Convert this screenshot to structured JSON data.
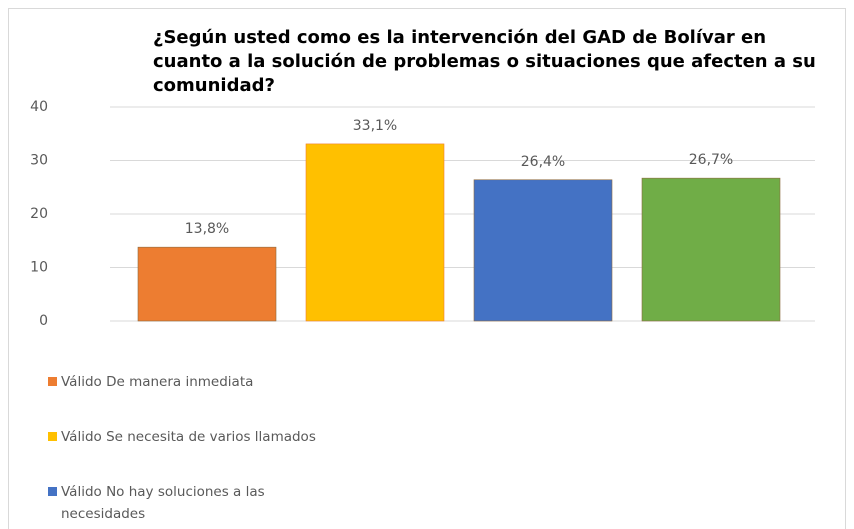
{
  "chart_data": {
    "type": "bar",
    "title": "¿Según usted como es la intervención del GAD de Bolívar en cuanto a la solución de problemas o situaciones que afecten a su comunidad?",
    "series": [
      {
        "name": "Válido De manera inmediata",
        "color": "#ed7d31",
        "values": [
          13.8
        ],
        "value_labels": [
          "13,8%"
        ]
      },
      {
        "name": "Válido Se necesita de varios llamados",
        "color": "#ffc000",
        "values": [
          33.1
        ],
        "value_labels": [
          "33,1%"
        ]
      },
      {
        "name": "Válido No hay soluciones a las necesidades",
        "color": "#4472c4",
        "values": [
          26.4
        ],
        "value_labels": [
          "26,4%"
        ]
      },
      {
        "color": "#70ad47",
        "values": [
          26.7
        ],
        "value_labels": [
          "26,7%"
        ]
      }
    ],
    "ylim": [
      0,
      40
    ],
    "yticks": [
      0,
      10,
      20,
      30,
      40
    ],
    "grid": true
  }
}
